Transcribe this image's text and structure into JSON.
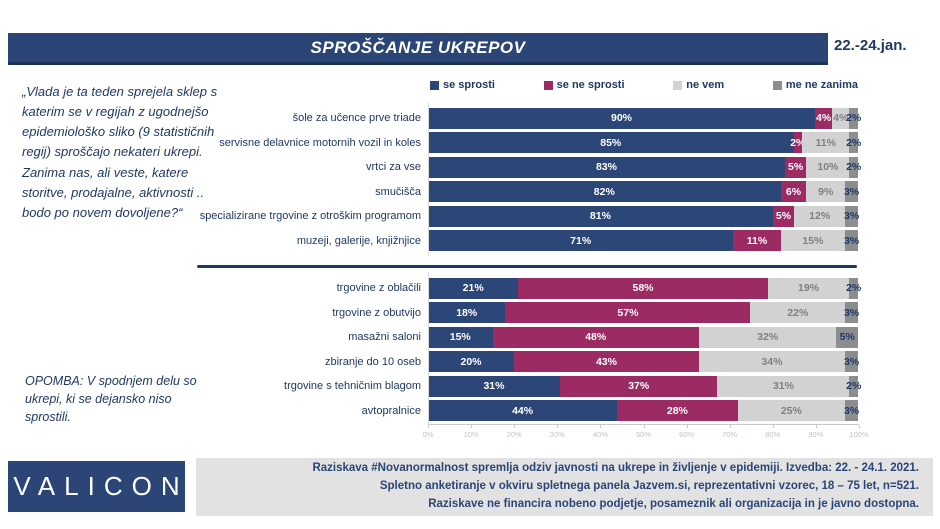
{
  "header": {
    "title": "SPROŠČANJE UKREPOV",
    "date": "22.-24.jan."
  },
  "quote": "„Vlada je ta teden sprejela sklep s katerim se v regijah z ugodnejšo epidemiološko sliko (9 statističnih regij) sproščajo nekateri ukrepi. Zanima nas, ali veste, katere storitve, prodajalne, aktivnosti .. bodo po novem dovoljene?“",
  "note": "OPOMBA: V spodnjem delu so ukrepi, ki se dejansko niso sprostili.",
  "logo": "VALICON",
  "footer": {
    "lines": [
      "Raziskava #Novanormalnost spremlja odziv javnosti na ukrepe in življenje v epidemiji. Izvedba: 22. - 24.1. 2021.",
      "Spletno anketiranje v okviru spletnega panela Jazvem.si, reprezentativni vzorec, 18 – 75 let, n=521.",
      "Raziskave ne financira nobeno podjetje, posameznik ali organizacija in je javno dostopna."
    ]
  },
  "chart_data": {
    "type": "bar",
    "stacked": true,
    "orientation": "horizontal",
    "title": "SPROŠČANJE UKREPOV",
    "xlim": [
      0,
      100
    ],
    "x_ticks": [
      "0%",
      "10%",
      "20%",
      "30%",
      "40%",
      "50%",
      "60%",
      "70%",
      "80%",
      "90%",
      "100%"
    ],
    "legend_position": "top",
    "legend": [
      {
        "label": "se sprosti",
        "color": "#2C4678"
      },
      {
        "label": "se ne sprosti",
        "color": "#9C2A63"
      },
      {
        "label": "ne vem",
        "color": "#D2D2D2"
      },
      {
        "label": "me ne zanima",
        "color": "#8C8D8F"
      }
    ],
    "groups": [
      {
        "name": "sproscheni-ukrepi",
        "rows": [
          {
            "label": "šole za učence prve triade",
            "values": [
              90,
              4,
              4,
              2
            ]
          },
          {
            "label": "servisne delavnice motornih vozil in koles",
            "values": [
              85,
              2,
              11,
              2
            ]
          },
          {
            "label": "vrtci za vse",
            "values": [
              83,
              5,
              10,
              2
            ]
          },
          {
            "label": "smučišča",
            "values": [
              82,
              6,
              9,
              3
            ]
          },
          {
            "label": "specializirane trgovine z otroškim programom",
            "values": [
              81,
              5,
              12,
              3
            ]
          },
          {
            "label": "muzeji, galerije, knjižnjice",
            "values": [
              71,
              11,
              15,
              3
            ]
          }
        ]
      },
      {
        "name": "ne-sproscheni-ukrepi",
        "rows": [
          {
            "label": "trgovine z oblačili",
            "values": [
              21,
              58,
              19,
              2
            ]
          },
          {
            "label": "trgovine z obutvijo",
            "values": [
              18,
              57,
              22,
              3
            ]
          },
          {
            "label": "masažni saloni",
            "values": [
              15,
              48,
              32,
              5
            ]
          },
          {
            "label": "zbiranje do 10 oseb",
            "values": [
              20,
              43,
              34,
              3
            ]
          },
          {
            "label": "trgovine s tehničnim blagom",
            "values": [
              31,
              37,
              31,
              2
            ]
          },
          {
            "label": "avtopralnice",
            "values": [
              44,
              28,
              25,
              3
            ]
          }
        ]
      }
    ]
  }
}
